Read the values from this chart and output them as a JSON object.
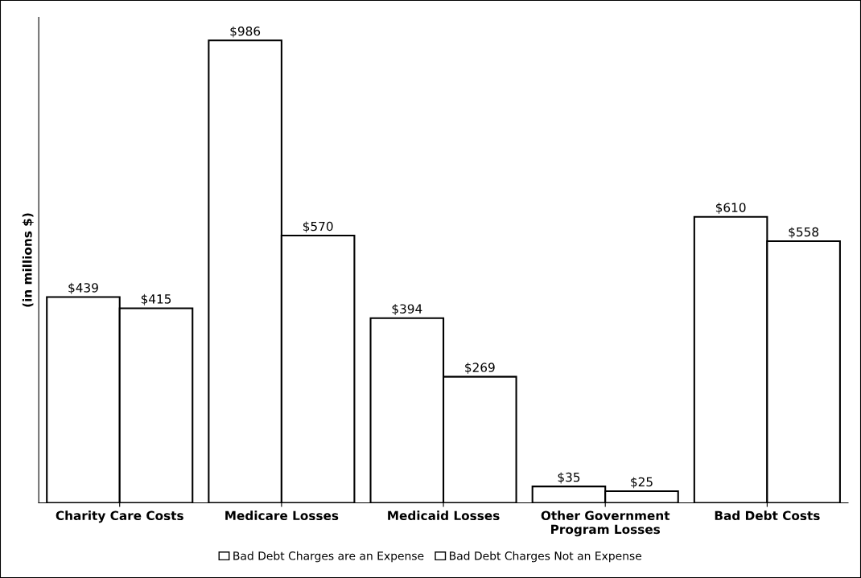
{
  "chart_data": {
    "type": "bar",
    "ylabel": "(in millions $)",
    "categories": [
      "Charity Care Costs",
      "Medicare Losses",
      "Medicaid Losses",
      "Other Government\nProgram Losses",
      "Bad Debt Costs"
    ],
    "series": [
      {
        "name": "Bad Debt Charges are an Expense",
        "color": "#ffffff",
        "values": [
          439,
          986,
          394,
          35,
          610
        ],
        "value_labels": [
          "$439",
          "$986",
          "$394",
          "$35",
          "$610"
        ]
      },
      {
        "name": "Bad Debt Charges Not an Expense",
        "color": "#ffffff",
        "values": [
          415,
          570,
          269,
          25,
          558
        ],
        "value_labels": [
          "$415",
          "$570",
          "$269",
          "$25",
          "$558"
        ]
      }
    ],
    "legend": "bottom",
    "grid": false,
    "tick_labels": "x"
  }
}
